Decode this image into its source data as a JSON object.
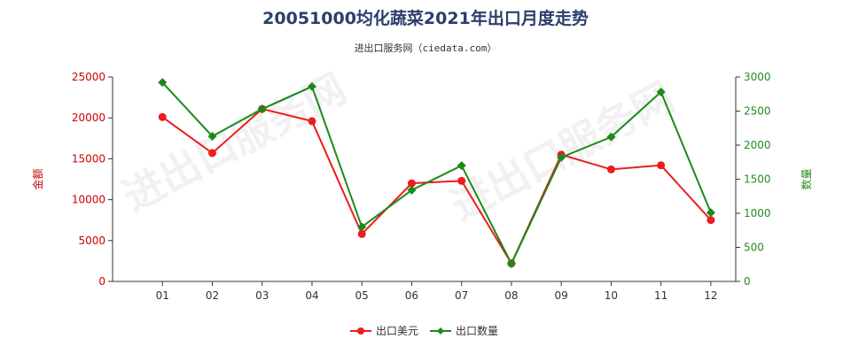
{
  "chart_data": {
    "type": "line",
    "title": "20051000均化蔬菜2021年出口月度走势",
    "subtitle": "进出口服务网（ciedata.com）",
    "watermark": "进出口服务网",
    "categories": [
      "01",
      "02",
      "03",
      "04",
      "05",
      "06",
      "07",
      "08",
      "09",
      "10",
      "11",
      "12"
    ],
    "y_left": {
      "label": "金额",
      "min": 0,
      "max": 25000,
      "ticks": [
        0,
        5000,
        10000,
        15000,
        20000,
        25000
      ],
      "color": "#cc0000"
    },
    "y_right": {
      "label": "数量",
      "min": 0,
      "max": 3000,
      "ticks": [
        0,
        500,
        1000,
        1500,
        2000,
        2500,
        3000
      ],
      "color": "#228b22"
    },
    "series": [
      {
        "name": "出口美元",
        "axis": "left",
        "color": "#ee1c1c",
        "values": [
          20100,
          15700,
          21100,
          19600,
          5800,
          12000,
          12300,
          2200,
          15500,
          13700,
          14200,
          7500
        ]
      },
      {
        "name": "出口数量",
        "axis": "right",
        "color": "#1a8a1a",
        "values": [
          2920,
          2130,
          2530,
          2860,
          800,
          1340,
          1700,
          260,
          1820,
          2120,
          2780,
          1010
        ]
      }
    ],
    "legend_position": "bottom-center"
  }
}
